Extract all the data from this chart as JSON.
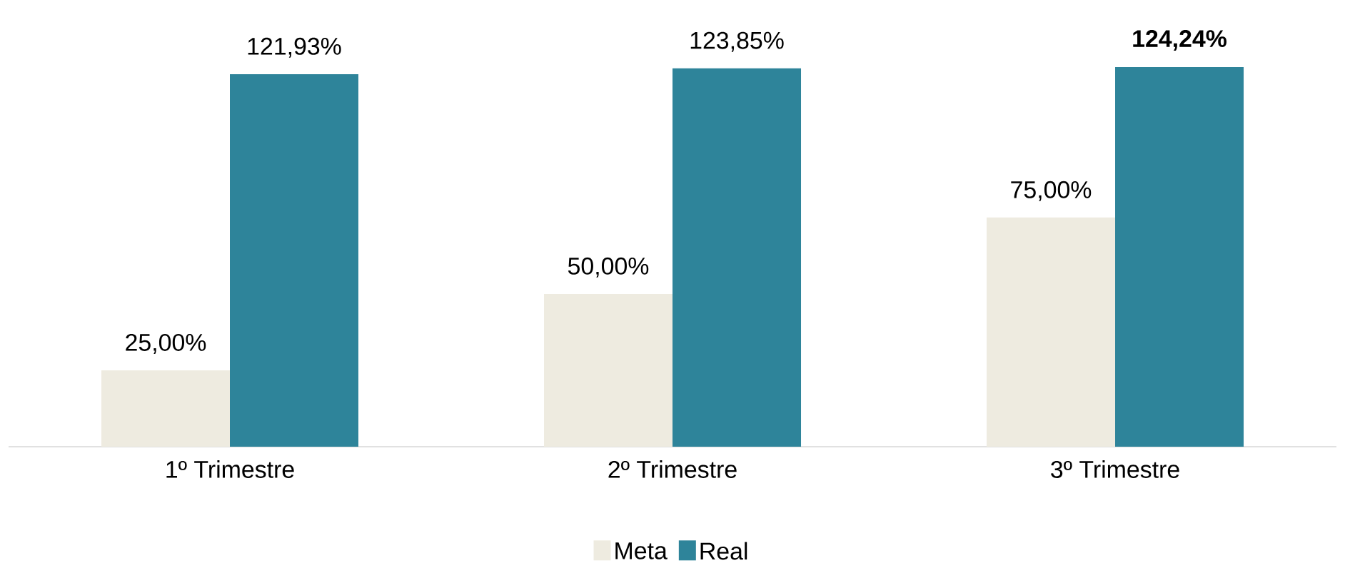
{
  "chart_data": {
    "type": "bar",
    "categories": [
      "1º Trimestre",
      "2º Trimestre",
      "3º Trimestre"
    ],
    "series": [
      {
        "name": "Meta",
        "color": "#eeebe0",
        "values": [
          25,
          50,
          75
        ],
        "value_labels": [
          "25,00%",
          "50,00%",
          "75,00%"
        ]
      },
      {
        "name": "Real",
        "color": "#2e849a",
        "values": [
          121.93,
          123.85,
          124.24
        ],
        "value_labels": [
          "121,93%",
          "123,85%",
          "**124,24%**"
        ]
      }
    ],
    "legend": "bottom",
    "grid": false,
    "tick_labels": "x"
  }
}
